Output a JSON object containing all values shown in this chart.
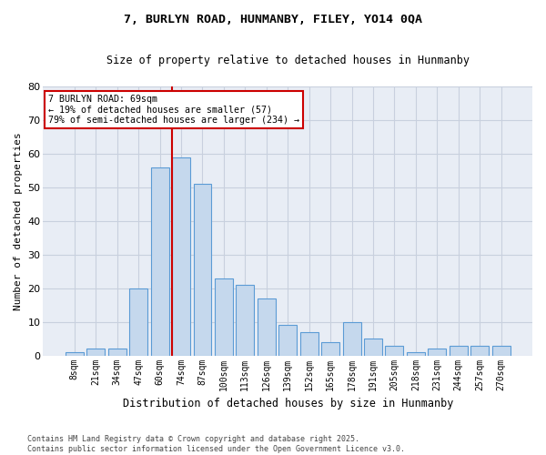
{
  "title_line1": "7, BURLYN ROAD, HUNMANBY, FILEY, YO14 0QA",
  "title_line2": "Size of property relative to detached houses in Hunmanby",
  "xlabel": "Distribution of detached houses by size in Hunmanby",
  "ylabel": "Number of detached properties",
  "categories": [
    "8sqm",
    "21sqm",
    "34sqm",
    "47sqm",
    "60sqm",
    "74sqm",
    "87sqm",
    "100sqm",
    "113sqm",
    "126sqm",
    "139sqm",
    "152sqm",
    "165sqm",
    "178sqm",
    "191sqm",
    "205sqm",
    "218sqm",
    "231sqm",
    "244sqm",
    "257sqm",
    "270sqm"
  ],
  "values": [
    1,
    2,
    2,
    20,
    56,
    59,
    51,
    23,
    21,
    17,
    9,
    7,
    4,
    10,
    5,
    3,
    1,
    2,
    3,
    3,
    3
  ],
  "bar_color": "#c5d8ed",
  "bar_edge_color": "#5b9bd5",
  "red_line_index": 5,
  "annotation_title": "7 BURLYN ROAD: 69sqm",
  "annotation_line2": "← 19% of detached houses are smaller (57)",
  "annotation_line3": "79% of semi-detached houses are larger (234) →",
  "annotation_box_color": "#ffffff",
  "annotation_box_edge": "#cc0000",
  "red_line_color": "#cc0000",
  "grid_color": "#c8d0de",
  "background_color": "#e8edf5",
  "ylim": [
    0,
    80
  ],
  "yticks": [
    0,
    10,
    20,
    30,
    40,
    50,
    60,
    70,
    80
  ],
  "footer_line1": "Contains HM Land Registry data © Crown copyright and database right 2025.",
  "footer_line2": "Contains public sector information licensed under the Open Government Licence v3.0."
}
